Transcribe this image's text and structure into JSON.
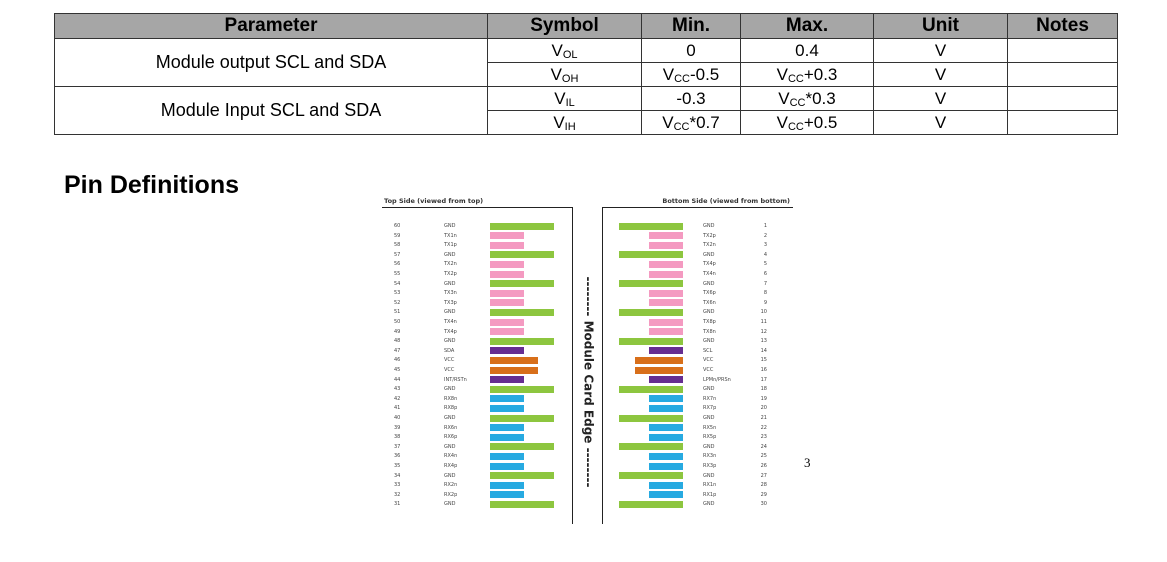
{
  "table": {
    "headers": [
      "Parameter",
      "Symbol",
      "Min.",
      "Max.",
      "Unit",
      "Notes"
    ],
    "groups": [
      {
        "parameter": "Module output SCL and SDA",
        "rows": [
          {
            "symbol_base": "V",
            "symbol_sub": "OL",
            "min": "0",
            "max": "0.4",
            "unit": "V",
            "notes": ""
          },
          {
            "symbol_base": "V",
            "symbol_sub": "OH",
            "min": "VCC-0.5",
            "max": "VCC+0.3",
            "unit": "V",
            "notes": ""
          }
        ]
      },
      {
        "parameter": "Module Input SCL and SDA",
        "rows": [
          {
            "symbol_base": "V",
            "symbol_sub": "IL",
            "min": "-0.3",
            "max": "VCC*0.3",
            "unit": "V",
            "notes": ""
          },
          {
            "symbol_base": "V",
            "symbol_sub": "IH",
            "min": "VCC*0.7",
            "max": "VCC+0.5",
            "unit": "V",
            "notes": ""
          }
        ]
      }
    ]
  },
  "value_parts": {
    "vcc_min_oh": {
      "base": "V",
      "sub": "CC",
      "rest": "-0.5"
    },
    "vcc_max_oh": {
      "base": "V",
      "sub": "CC",
      "rest": "+0.3"
    },
    "vcc_max_il": {
      "base": "V",
      "sub": "CC",
      "rest": "*0.3"
    },
    "vcc_min_ih": {
      "base": "V",
      "sub": "CC",
      "rest": "*0.7"
    },
    "vcc_max_ih": {
      "base": "V",
      "sub": "CC",
      "rest": "+0.5"
    }
  },
  "section_heading": "Pin Definitions",
  "pin_diagram": {
    "top_title": "Top Side (viewed from top)",
    "bottom_title": "Bottom Side (viewed from bottom)",
    "edge_label": "-------- Module Card Edge --------",
    "colors": {
      "gnd": "#8dc63f",
      "tx": "#f49ac1",
      "rx": "#27aae1",
      "i2c": "#662d91",
      "vcc": "#d86f1a"
    },
    "top_pins": [
      {
        "num": "60",
        "sig": "GND",
        "type": "gnd"
      },
      {
        "num": "59",
        "sig": "TX1n",
        "type": "tx"
      },
      {
        "num": "58",
        "sig": "TX1p",
        "type": "tx"
      },
      {
        "num": "57",
        "sig": "GND",
        "type": "gnd"
      },
      {
        "num": "56",
        "sig": "TX2n",
        "type": "tx"
      },
      {
        "num": "55",
        "sig": "TX2p",
        "type": "tx"
      },
      {
        "num": "54",
        "sig": "GND",
        "type": "gnd"
      },
      {
        "num": "53",
        "sig": "TX3n",
        "type": "tx"
      },
      {
        "num": "52",
        "sig": "TX3p",
        "type": "tx"
      },
      {
        "num": "51",
        "sig": "GND",
        "type": "gnd"
      },
      {
        "num": "50",
        "sig": "TX4n",
        "type": "tx"
      },
      {
        "num": "49",
        "sig": "TX4p",
        "type": "tx"
      },
      {
        "num": "48",
        "sig": "GND",
        "type": "gnd"
      },
      {
        "num": "47",
        "sig": "SDA",
        "type": "i2c"
      },
      {
        "num": "46",
        "sig": "VCC",
        "type": "vcc"
      },
      {
        "num": "45",
        "sig": "VCC",
        "type": "vcc"
      },
      {
        "num": "44",
        "sig": "INT/RSTn",
        "type": "i2c"
      },
      {
        "num": "43",
        "sig": "GND",
        "type": "gnd"
      },
      {
        "num": "42",
        "sig": "RX8n",
        "type": "rx"
      },
      {
        "num": "41",
        "sig": "RX8p",
        "type": "rx"
      },
      {
        "num": "40",
        "sig": "GND",
        "type": "gnd"
      },
      {
        "num": "39",
        "sig": "RX6n",
        "type": "rx"
      },
      {
        "num": "38",
        "sig": "RX6p",
        "type": "rx"
      },
      {
        "num": "37",
        "sig": "GND",
        "type": "gnd"
      },
      {
        "num": "36",
        "sig": "RX4n",
        "type": "rx"
      },
      {
        "num": "35",
        "sig": "RX4p",
        "type": "rx"
      },
      {
        "num": "34",
        "sig": "GND",
        "type": "gnd"
      },
      {
        "num": "33",
        "sig": "RX2n",
        "type": "rx"
      },
      {
        "num": "32",
        "sig": "RX2p",
        "type": "rx"
      },
      {
        "num": "31",
        "sig": "GND",
        "type": "gnd"
      }
    ],
    "bottom_pins": [
      {
        "num": "1",
        "sig": "GND",
        "type": "gnd"
      },
      {
        "num": "2",
        "sig": "TX2p",
        "type": "tx"
      },
      {
        "num": "3",
        "sig": "TX2n",
        "type": "tx"
      },
      {
        "num": "4",
        "sig": "GND",
        "type": "gnd"
      },
      {
        "num": "5",
        "sig": "TX4p",
        "type": "tx"
      },
      {
        "num": "6",
        "sig": "TX4n",
        "type": "tx"
      },
      {
        "num": "7",
        "sig": "GND",
        "type": "gnd"
      },
      {
        "num": "8",
        "sig": "TX6p",
        "type": "tx"
      },
      {
        "num": "9",
        "sig": "TX6n",
        "type": "tx"
      },
      {
        "num": "10",
        "sig": "GND",
        "type": "gnd"
      },
      {
        "num": "11",
        "sig": "TX8p",
        "type": "tx"
      },
      {
        "num": "12",
        "sig": "TX8n",
        "type": "tx"
      },
      {
        "num": "13",
        "sig": "GND",
        "type": "gnd"
      },
      {
        "num": "14",
        "sig": "SCL",
        "type": "i2c"
      },
      {
        "num": "15",
        "sig": "VCC",
        "type": "vcc"
      },
      {
        "num": "16",
        "sig": "VCC",
        "type": "vcc"
      },
      {
        "num": "17",
        "sig": "LPMn/PRSn",
        "type": "i2c"
      },
      {
        "num": "18",
        "sig": "GND",
        "type": "gnd"
      },
      {
        "num": "19",
        "sig": "RX7n",
        "type": "rx"
      },
      {
        "num": "20",
        "sig": "RX7p",
        "type": "rx"
      },
      {
        "num": "21",
        "sig": "GND",
        "type": "gnd"
      },
      {
        "num": "22",
        "sig": "RX5n",
        "type": "rx"
      },
      {
        "num": "23",
        "sig": "RX5p",
        "type": "rx"
      },
      {
        "num": "24",
        "sig": "GND",
        "type": "gnd"
      },
      {
        "num": "25",
        "sig": "RX3n",
        "type": "rx"
      },
      {
        "num": "26",
        "sig": "RX3p",
        "type": "rx"
      },
      {
        "num": "27",
        "sig": "GND",
        "type": "gnd"
      },
      {
        "num": "28",
        "sig": "RX1n",
        "type": "rx"
      },
      {
        "num": "29",
        "sig": "RX1p",
        "type": "rx"
      },
      {
        "num": "30",
        "sig": "GND",
        "type": "gnd"
      }
    ]
  },
  "page_number": "3"
}
